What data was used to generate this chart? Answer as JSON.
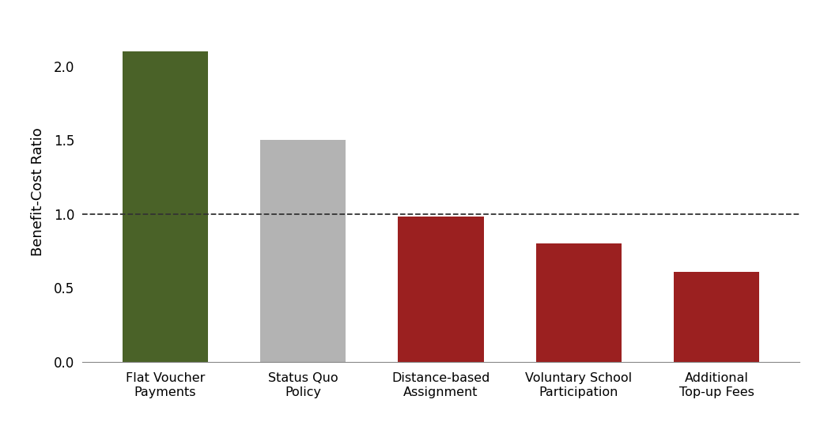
{
  "categories": [
    "Flat Voucher\nPayments",
    "Status Quo\nPolicy",
    "Distance-based\nAssignment",
    "Voluntary School\nParticipation",
    "Additional\nTop-up Fees"
  ],
  "values": [
    2.1,
    1.5,
    0.98,
    0.8,
    0.61
  ],
  "bar_colors": [
    "#4a6228",
    "#b3b3b3",
    "#9b2020",
    "#9b2020",
    "#9b2020"
  ],
  "ylabel": "Benefit-Cost Ratio",
  "ylim": [
    0,
    2.3
  ],
  "yticks": [
    0.0,
    0.5,
    1.0,
    1.5,
    2.0
  ],
  "hline_y": 1.0,
  "hline_style": "--",
  "hline_color": "#333333",
  "background_color": "#ffffff",
  "bar_width": 0.62,
  "ylabel_fontsize": 13,
  "tick_fontsize": 12,
  "xtick_fontsize": 11.5
}
